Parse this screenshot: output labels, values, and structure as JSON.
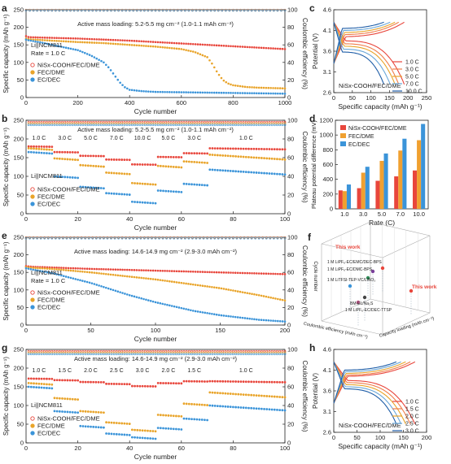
{
  "chart_data": [
    {
      "id": "a",
      "type": "scatter",
      "panel_label": "a",
      "xlabel": "Cycle number",
      "ylabel": "Specific capacity (mAh g⁻¹)",
      "y2label": "Coulombic efficiency (%)",
      "xlim": [
        0,
        1000
      ],
      "ylim": [
        0,
        250
      ],
      "y2lim": [
        0,
        100
      ],
      "xticks": [
        0,
        200,
        400,
        600,
        800,
        1000
      ],
      "yticks": [
        0,
        50,
        100,
        150,
        200,
        250
      ],
      "y2ticks": [
        0,
        20,
        40,
        60,
        80,
        100
      ],
      "annotation": "Active mass loading: 5.2-5.5 mg cm⁻² (1.0-1.1 mAh cm⁻²)",
      "text_lines": [
        "Li||NCM811",
        "Rate = 1.0 C"
      ],
      "legend": [
        "NiSx-COOH/FEC/DME",
        "FEC/DME",
        "EC/DEC"
      ],
      "series": [
        {
          "name": "NiSx-COOH/FEC/DME",
          "color": "#e8463c",
          "x": [
            0,
            10,
            50,
            100,
            200,
            300,
            400,
            500,
            600,
            700,
            800,
            900,
            1000
          ],
          "y": [
            175,
            172,
            171,
            170,
            168,
            165,
            162,
            158,
            154,
            150,
            146,
            142,
            138
          ]
        },
        {
          "name": "FEC/DME",
          "color": "#e9a42a",
          "x": [
            0,
            10,
            100,
            200,
            300,
            400,
            500,
            600,
            650,
            700,
            720,
            740,
            760,
            780,
            800,
            850,
            900,
            1000
          ],
          "y": [
            168,
            166,
            162,
            158,
            155,
            150,
            145,
            138,
            130,
            115,
            95,
            70,
            50,
            40,
            35,
            30,
            28,
            26
          ]
        },
        {
          "name": "EC/DEC",
          "color": "#3b94d9",
          "x": [
            0,
            10,
            50,
            100,
            200,
            250,
            300,
            320,
            340,
            360,
            380,
            400,
            450,
            500,
            600,
            700,
            800,
            900,
            1000
          ],
          "y": [
            165,
            163,
            158,
            150,
            135,
            120,
            100,
            85,
            65,
            45,
            30,
            22,
            18,
            16,
            15,
            14,
            13,
            12,
            11
          ]
        }
      ],
      "ce_series": [
        {
          "name": "NiSx-COOH/FEC/DME",
          "color": "#e8463c",
          "x": [
            0,
            1000
          ],
          "y": [
            99.8,
            99.8
          ]
        },
        {
          "name": "FEC/DME",
          "color": "#e9a42a",
          "x": [
            0,
            1000
          ],
          "y": [
            99.5,
            99.5
          ]
        },
        {
          "name": "EC/DEC",
          "color": "#3b94d9",
          "x": [
            0,
            1000
          ],
          "y": [
            99.2,
            99.2
          ]
        }
      ]
    },
    {
      "id": "b",
      "type": "scatter",
      "panel_label": "b",
      "xlabel": "Cycle number",
      "ylabel": "Specific capacity (mAh g⁻¹)",
      "y2label": "Coulombic efficiency (%)",
      "xlim": [
        0,
        100
      ],
      "ylim": [
        0,
        250
      ],
      "y2lim": [
        0,
        100
      ],
      "xticks": [
        0,
        20,
        40,
        60,
        80,
        100
      ],
      "yticks": [
        0,
        50,
        100,
        150,
        200,
        250
      ],
      "y2ticks": [
        0,
        20,
        40,
        60,
        80,
        100
      ],
      "annotation": "Active mass loading: 5.2-5.5 mg cm⁻² (1.0-1.1 mAh cm⁻²)",
      "text_lines": [
        "Li||NCM811"
      ],
      "legend": [
        "NiSx-COOH/FEC/DME",
        "FEC/DME",
        "EC/DEC"
      ],
      "rate_labels": [
        {
          "x": 5,
          "text": "1.0 C"
        },
        {
          "x": 15,
          "text": "3.0 C"
        },
        {
          "x": 25,
          "text": "5.0 C"
        },
        {
          "x": 35,
          "text": "7.0 C"
        },
        {
          "x": 45,
          "text": "10.0 C"
        },
        {
          "x": 55,
          "text": "5.0 C"
        },
        {
          "x": 65,
          "text": "3.0 C"
        },
        {
          "x": 85,
          "text": "1.0 C"
        }
      ],
      "segments": [
        [
          1,
          10
        ],
        [
          11,
          20
        ],
        [
          21,
          30
        ],
        [
          31,
          40
        ],
        [
          41,
          50
        ],
        [
          51,
          60
        ],
        [
          61,
          70
        ],
        [
          71,
          100
        ]
      ],
      "series": [
        {
          "name": "NiSx-COOH/FEC/DME",
          "color": "#e8463c",
          "values": [
            180,
            165,
            155,
            145,
            132,
            152,
            162,
            175
          ]
        },
        {
          "name": "FEC/DME",
          "color": "#e9a42a",
          "values": [
            175,
            148,
            130,
            110,
            82,
            128,
            140,
            158
          ]
        },
        {
          "name": "EC/DEC",
          "color": "#3b94d9",
          "values": [
            165,
            100,
            72,
            55,
            32,
            62,
            80,
            118
          ]
        }
      ]
    },
    {
      "id": "c",
      "type": "line",
      "panel_label": "c",
      "xlabel": "Specific capacity (mAh g⁻¹)",
      "ylabel": "Potential (V)",
      "xlim": [
        0,
        250
      ],
      "ylim": [
        2.6,
        4.6
      ],
      "xticks": [
        0,
        50,
        100,
        150,
        200,
        250
      ],
      "yticks": [
        2.6,
        3.1,
        3.6,
        4.1,
        4.6
      ],
      "text": "NiSx-COOH/FEC/DME",
      "legend": [
        "1.0 C",
        "3.0 C",
        "5.0 C",
        "7.0 C",
        "10.0 C"
      ],
      "series": [
        {
          "name": "1.0 C",
          "color": "#e8463c",
          "cap": 190,
          "charge_v": 3.95,
          "discharge_v": 3.85
        },
        {
          "name": "3.0 C",
          "color": "#f07d4a",
          "cap": 175,
          "charge_v": 4.0,
          "discharge_v": 3.78
        },
        {
          "name": "5.0 C",
          "color": "#e9a42a",
          "cap": 165,
          "charge_v": 4.05,
          "discharge_v": 3.72
        },
        {
          "name": "7.0 C",
          "color": "#6aa7d8",
          "cap": 152,
          "charge_v": 4.1,
          "discharge_v": 3.65
        },
        {
          "name": "10.0 C",
          "color": "#1f5ea8",
          "cap": 135,
          "charge_v": 4.15,
          "discharge_v": 3.58
        }
      ]
    },
    {
      "id": "d",
      "type": "bar",
      "panel_label": "d",
      "xlabel": "Rate (C)",
      "ylabel": "Plateau potential difference (mV)",
      "categories": [
        "1.0",
        "3.0",
        "5.0",
        "7.0",
        "10.0"
      ],
      "ylim": [
        0,
        1200
      ],
      "yticks": [
        0,
        200,
        400,
        600,
        800,
        1000,
        1200
      ],
      "legend": [
        "NiSx-COOH/FEC/DME",
        "FEC/DME",
        "EC/DEC"
      ],
      "series": [
        {
          "name": "NiSx-COOH/FEC/DME",
          "color": "#e8463c",
          "values": [
            250,
            280,
            380,
            440,
            520
          ]
        },
        {
          "name": "FEC/DME",
          "color": "#f0a030",
          "values": [
            240,
            490,
            650,
            790,
            930
          ]
        },
        {
          "name": "EC/DEC",
          "color": "#3b94d9",
          "values": [
            330,
            570,
            750,
            950,
            1150
          ]
        }
      ]
    },
    {
      "id": "e",
      "type": "scatter",
      "panel_label": "e",
      "xlabel": "Cycle number",
      "ylabel": "Specific capacity (mAh g⁻¹)",
      "y2label": "Coulombic efficiency (%)",
      "xlim": [
        0,
        200
      ],
      "ylim": [
        0,
        250
      ],
      "y2lim": [
        0,
        100
      ],
      "xticks": [
        0,
        50,
        100,
        150,
        200
      ],
      "yticks": [
        0,
        50,
        100,
        150,
        200,
        250
      ],
      "y2ticks": [
        0,
        20,
        40,
        60,
        80,
        100
      ],
      "annotation": "Active mass loading: 14.6-14.9 mg cm⁻² (2.9-3.0 mAh cm⁻²)",
      "text_lines": [
        "Li||NCM811",
        "Rate = 1.0 C"
      ],
      "legend": [
        "NiSx-COOH/FEC/DME",
        "FEC/DME",
        "EC/DEC"
      ],
      "series": [
        {
          "name": "NiSx-COOH/FEC/DME",
          "color": "#e8463c",
          "x": [
            0,
            5,
            20,
            50,
            100,
            150,
            200
          ],
          "y": [
            168,
            166,
            164,
            160,
            155,
            150,
            145
          ]
        },
        {
          "name": "FEC/DME",
          "color": "#e9a42a",
          "x": [
            0,
            5,
            20,
            50,
            100,
            150,
            180,
            200
          ],
          "y": [
            165,
            163,
            160,
            150,
            130,
            105,
            85,
            70
          ]
        },
        {
          "name": "EC/DEC",
          "color": "#3b94d9",
          "x": [
            0,
            5,
            20,
            50,
            80,
            100,
            130,
            150,
            180,
            200
          ],
          "y": [
            162,
            158,
            148,
            120,
            85,
            65,
            40,
            28,
            15,
            10
          ]
        }
      ],
      "ce_series": [
        {
          "name": "NiSx-COOH/FEC/DME",
          "color": "#e8463c",
          "x": [
            0,
            200
          ],
          "y": [
            99.7,
            99.7
          ]
        },
        {
          "name": "FEC/DME",
          "color": "#e9a42a",
          "x": [
            0,
            200
          ],
          "y": [
            99.4,
            99.4
          ]
        },
        {
          "name": "EC/DEC",
          "color": "#3b94d9",
          "x": [
            0,
            200
          ],
          "y": [
            99.0,
            99.0
          ]
        }
      ]
    },
    {
      "id": "f",
      "type": "scatter",
      "panel_label": "f",
      "labels": [
        "This work",
        "This work",
        "1 M LiPF₆-EC/EMC/DEC-BPS",
        "1 M LiPF₆-EC/DMC-BPS",
        "1 M LiTFSI-TEP-VC/LiNO₃",
        "1 M LiPF₆-EC/DEC-TTSP",
        "BM-EL/Na₂S"
      ],
      "axis_labels": [
        "Cycle number",
        "Coulombic efficiency (mAh cm⁻²)",
        "Capacity loading (mAh cm⁻²)"
      ]
    },
    {
      "id": "g",
      "type": "scatter",
      "panel_label": "g",
      "xlabel": "Cycle number",
      "ylabel": "Specific capacity (mAh g⁻¹)",
      "y2label": "Coulombic efficiency (%)",
      "xlim": [
        0,
        100
      ],
      "ylim": [
        0,
        250
      ],
      "y2lim": [
        0,
        100
      ],
      "xticks": [
        0,
        20,
        40,
        60,
        80,
        100
      ],
      "yticks": [
        0,
        50,
        100,
        150,
        200,
        250
      ],
      "y2ticks": [
        0,
        20,
        40,
        60,
        80,
        100
      ],
      "annotation": "Active mass loading: 14.6-14.9 mg cm⁻² (2.9-3.0 mAh cm⁻²)",
      "text_lines": [
        "Li||NCM811"
      ],
      "legend": [
        "NiSx-COOH/FEC/DME",
        "FEC/DME",
        "EC/DEC"
      ],
      "rate_labels": [
        {
          "x": 5,
          "text": "1.0 C"
        },
        {
          "x": 15,
          "text": "1.5 C"
        },
        {
          "x": 25,
          "text": "2.0 C"
        },
        {
          "x": 35,
          "text": "2.5 C"
        },
        {
          "x": 45,
          "text": "3.0 C"
        },
        {
          "x": 55,
          "text": "2.0 C"
        },
        {
          "x": 65,
          "text": "1.5 C"
        },
        {
          "x": 85,
          "text": "1.0 C"
        }
      ],
      "segments": [
        [
          1,
          10
        ],
        [
          11,
          20
        ],
        [
          21,
          30
        ],
        [
          31,
          40
        ],
        [
          41,
          50
        ],
        [
          51,
          60
        ],
        [
          61,
          70
        ],
        [
          71,
          100
        ]
      ],
      "series": [
        {
          "name": "NiSx-COOH/FEC/DME",
          "color": "#e8463c",
          "values": [
            172,
            168,
            163,
            158,
            152,
            160,
            165,
            165
          ]
        },
        {
          "name": "FEC/DME",
          "color": "#e9a42a",
          "values": [
            160,
            120,
            85,
            55,
            35,
            75,
            105,
            135
          ]
        },
        {
          "name": "EC/DEC",
          "color": "#3b94d9",
          "values": [
            150,
            85,
            45,
            25,
            15,
            40,
            65,
            100
          ]
        }
      ]
    },
    {
      "id": "h",
      "type": "line",
      "panel_label": "h",
      "xlabel": "Specific capacity (mAh g⁻¹)",
      "ylabel": "Potential (V)",
      "xlim": [
        0,
        200
      ],
      "ylim": [
        2.6,
        4.6
      ],
      "xticks": [
        0,
        50,
        100,
        150,
        200
      ],
      "yticks": [
        2.6,
        3.1,
        3.6,
        4.1,
        4.6
      ],
      "text": "NiSx-COOH/FEC/DME",
      "legend": [
        "1.0 C",
        "1.5 C",
        "2.0 C",
        "2.5 C",
        "3.0 C"
      ],
      "series": [
        {
          "name": "1.0 C",
          "color": "#e8463c",
          "cap": 175,
          "charge_v": 3.95,
          "discharge_v": 3.85
        },
        {
          "name": "1.5 C",
          "color": "#f07d4a",
          "cap": 165,
          "charge_v": 3.98,
          "discharge_v": 3.8
        },
        {
          "name": "2.0 C",
          "color": "#e9a42a",
          "cap": 155,
          "charge_v": 4.02,
          "discharge_v": 3.75
        },
        {
          "name": "2.5 C",
          "color": "#6aa7d8",
          "cap": 145,
          "charge_v": 4.06,
          "discharge_v": 3.7
        },
        {
          "name": "3.0 C",
          "color": "#1f5ea8",
          "cap": 135,
          "charge_v": 4.1,
          "discharge_v": 3.65
        }
      ]
    }
  ]
}
